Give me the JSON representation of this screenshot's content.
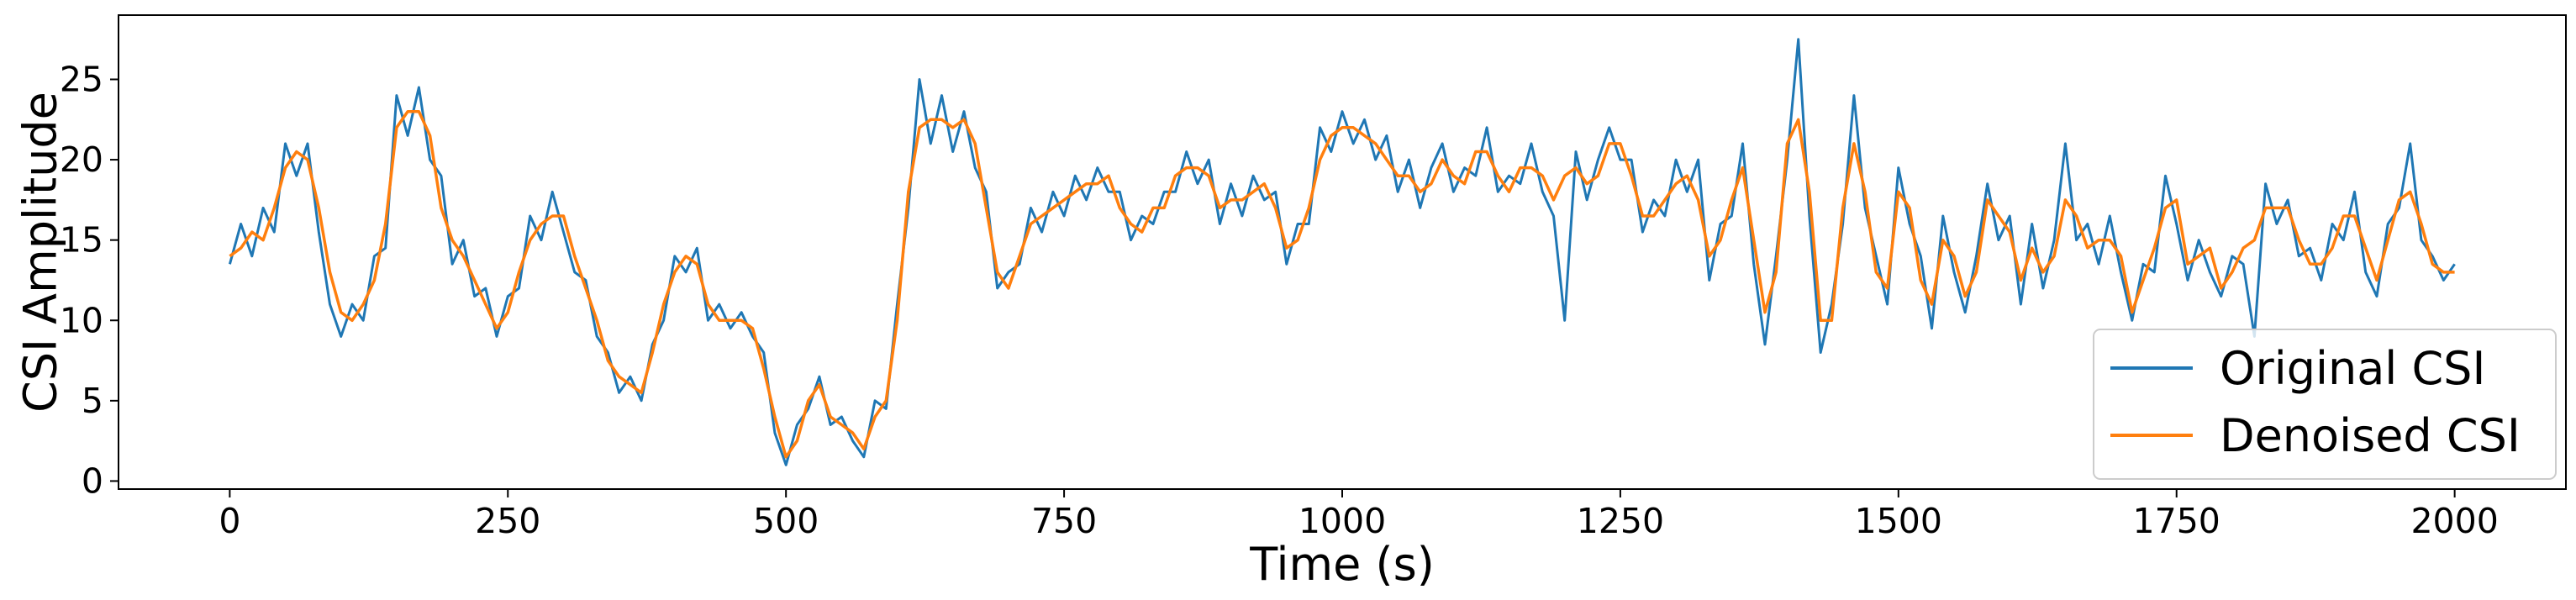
{
  "chart_data": {
    "type": "line",
    "x_label": "Time (s)",
    "y_label": "CSI Amplitude",
    "x": [
      0,
      10,
      20,
      30,
      40,
      50,
      60,
      70,
      80,
      90,
      100,
      110,
      120,
      130,
      140,
      150,
      160,
      170,
      180,
      190,
      200,
      210,
      220,
      230,
      240,
      250,
      260,
      270,
      280,
      290,
      300,
      310,
      320,
      330,
      340,
      350,
      360,
      370,
      380,
      390,
      400,
      410,
      420,
      430,
      440,
      450,
      460,
      470,
      480,
      490,
      500,
      510,
      520,
      530,
      540,
      550,
      560,
      570,
      580,
      590,
      600,
      610,
      620,
      630,
      640,
      650,
      660,
      670,
      680,
      690,
      700,
      710,
      720,
      730,
      740,
      750,
      760,
      770,
      780,
      790,
      800,
      810,
      820,
      830,
      840,
      850,
      860,
      870,
      880,
      890,
      900,
      910,
      920,
      930,
      940,
      950,
      960,
      970,
      980,
      990,
      1000,
      1010,
      1020,
      1030,
      1040,
      1050,
      1060,
      1070,
      1080,
      1090,
      1100,
      1110,
      1120,
      1130,
      1140,
      1150,
      1160,
      1170,
      1180,
      1190,
      1200,
      1210,
      1220,
      1230,
      1240,
      1250,
      1260,
      1270,
      1280,
      1290,
      1300,
      1310,
      1320,
      1330,
      1340,
      1350,
      1360,
      1370,
      1380,
      1390,
      1400,
      1410,
      1420,
      1430,
      1440,
      1450,
      1460,
      1470,
      1480,
      1490,
      1500,
      1510,
      1520,
      1530,
      1540,
      1550,
      1560,
      1570,
      1580,
      1590,
      1600,
      1610,
      1620,
      1630,
      1640,
      1650,
      1660,
      1670,
      1680,
      1690,
      1700,
      1710,
      1720,
      1730,
      1740,
      1750,
      1760,
      1770,
      1780,
      1790,
      1800,
      1810,
      1820,
      1830,
      1840,
      1850,
      1860,
      1870,
      1880,
      1890,
      1900,
      1910,
      1920,
      1930,
      1940,
      1950,
      1960,
      1970,
      1980,
      1990,
      2000
    ],
    "series": [
      {
        "name": "Original CSI",
        "color": "#1f77b4",
        "values": [
          13.5,
          16,
          14,
          17,
          15.5,
          21,
          19,
          21,
          15.5,
          11,
          9,
          11,
          10,
          14,
          14.5,
          24,
          21.5,
          24.5,
          20,
          19,
          13.5,
          15,
          11.5,
          12,
          9,
          11.5,
          12,
          16.5,
          15,
          18,
          15.5,
          13,
          12.5,
          9,
          8,
          5.5,
          6.5,
          5,
          8.5,
          10,
          14,
          13,
          14.5,
          10,
          11,
          9.5,
          10.5,
          9,
          8,
          3,
          1,
          3.5,
          4.5,
          6.5,
          3.5,
          4,
          2.5,
          1.5,
          5,
          4.5,
          11,
          17,
          25,
          21,
          24,
          20.5,
          23,
          19.5,
          18,
          12,
          13,
          13.5,
          17,
          15.5,
          18,
          16.5,
          19,
          17.5,
          19.5,
          18,
          18,
          15,
          16.5,
          16,
          18,
          18,
          20.5,
          18.5,
          20,
          16,
          18.5,
          16.5,
          19,
          17.5,
          18,
          13.5,
          16,
          16,
          22,
          20.5,
          23,
          21,
          22.5,
          20,
          21.5,
          18,
          20,
          17,
          19.5,
          21,
          18,
          19.5,
          19,
          22,
          18,
          19,
          18.5,
          21,
          18,
          16.5,
          10,
          20.5,
          17.5,
          20,
          22,
          20,
          20,
          15.5,
          17.5,
          16.5,
          20,
          18,
          20,
          12.5,
          16,
          16.5,
          21,
          13.5,
          8.5,
          14,
          20,
          27.5,
          16.5,
          8,
          11,
          16,
          24,
          17,
          14,
          11,
          19.5,
          16,
          14,
          9.5,
          16.5,
          13,
          10.5,
          14,
          18.5,
          15,
          16.5,
          11,
          16,
          12,
          15,
          21,
          15,
          16,
          13.5,
          16.5,
          13,
          10,
          13.5,
          13,
          19,
          16,
          12.5,
          15,
          13,
          11.5,
          14,
          13.5,
          9,
          18.5,
          16,
          17.5,
          14,
          14.5,
          12.5,
          16,
          15,
          18,
          13,
          11.5,
          16,
          17,
          21,
          15,
          14,
          12.5,
          13.5
        ]
      },
      {
        "name": "Denoised CSI",
        "color": "#ff7f0e",
        "values": [
          14,
          14.5,
          15.5,
          15,
          17,
          19.5,
          20.5,
          20,
          17,
          13,
          10.5,
          10,
          11,
          12.5,
          16,
          22,
          23,
          23,
          21.5,
          17,
          15,
          14,
          12.5,
          11,
          9.5,
          10.5,
          13,
          15,
          16,
          16.5,
          16.5,
          14,
          12,
          10,
          7.5,
          6.5,
          6,
          5.5,
          8,
          11,
          13,
          14,
          13.5,
          11,
          10,
          10,
          10,
          9.5,
          7,
          4,
          1.5,
          2.5,
          5,
          6,
          4,
          3.5,
          3,
          2,
          4,
          5,
          10,
          18,
          22,
          22.5,
          22.5,
          22,
          22.5,
          21,
          17,
          13,
          12,
          14,
          16,
          16.5,
          17,
          17.5,
          18,
          18.5,
          18.5,
          19,
          17,
          16,
          15.5,
          17,
          17,
          19,
          19.5,
          19.5,
          19,
          17,
          17.5,
          17.5,
          18,
          18.5,
          17,
          14.5,
          15,
          17,
          20,
          21.5,
          22,
          22,
          21.5,
          21,
          20,
          19,
          19,
          18,
          18.5,
          20,
          19,
          18.5,
          20.5,
          20.5,
          19,
          18,
          19.5,
          19.5,
          19,
          17.5,
          19,
          19.5,
          18.5,
          19,
          21,
          21,
          19,
          16.5,
          16.5,
          17.5,
          18.5,
          19,
          17.5,
          14,
          15,
          17.5,
          19.5,
          15,
          10.5,
          13,
          21,
          22.5,
          18,
          10,
          10,
          17,
          21,
          18,
          13,
          12,
          18,
          17,
          12.5,
          11,
          15,
          14,
          11.5,
          13,
          17.5,
          16.5,
          15.5,
          12.5,
          14.5,
          13,
          14,
          17.5,
          16.5,
          14.5,
          15,
          15,
          14,
          10.5,
          12.5,
          14.5,
          17,
          17.5,
          13.5,
          14,
          14.5,
          12,
          13,
          14.5,
          15,
          17,
          17,
          17,
          15,
          13.5,
          13.5,
          14.5,
          16.5,
          16.5,
          14.5,
          12.5,
          15,
          17.5,
          18,
          16,
          13.5,
          13,
          13
        ]
      }
    ],
    "xlim": [
      -100,
      2100
    ],
    "xticks": [
      0,
      250,
      500,
      750,
      1000,
      1250,
      1500,
      1750,
      2000
    ],
    "ylim": [
      -0.5,
      29
    ],
    "yticks": [
      0,
      5,
      10,
      15,
      20,
      25
    ],
    "grid": false,
    "legend": "lower right"
  }
}
